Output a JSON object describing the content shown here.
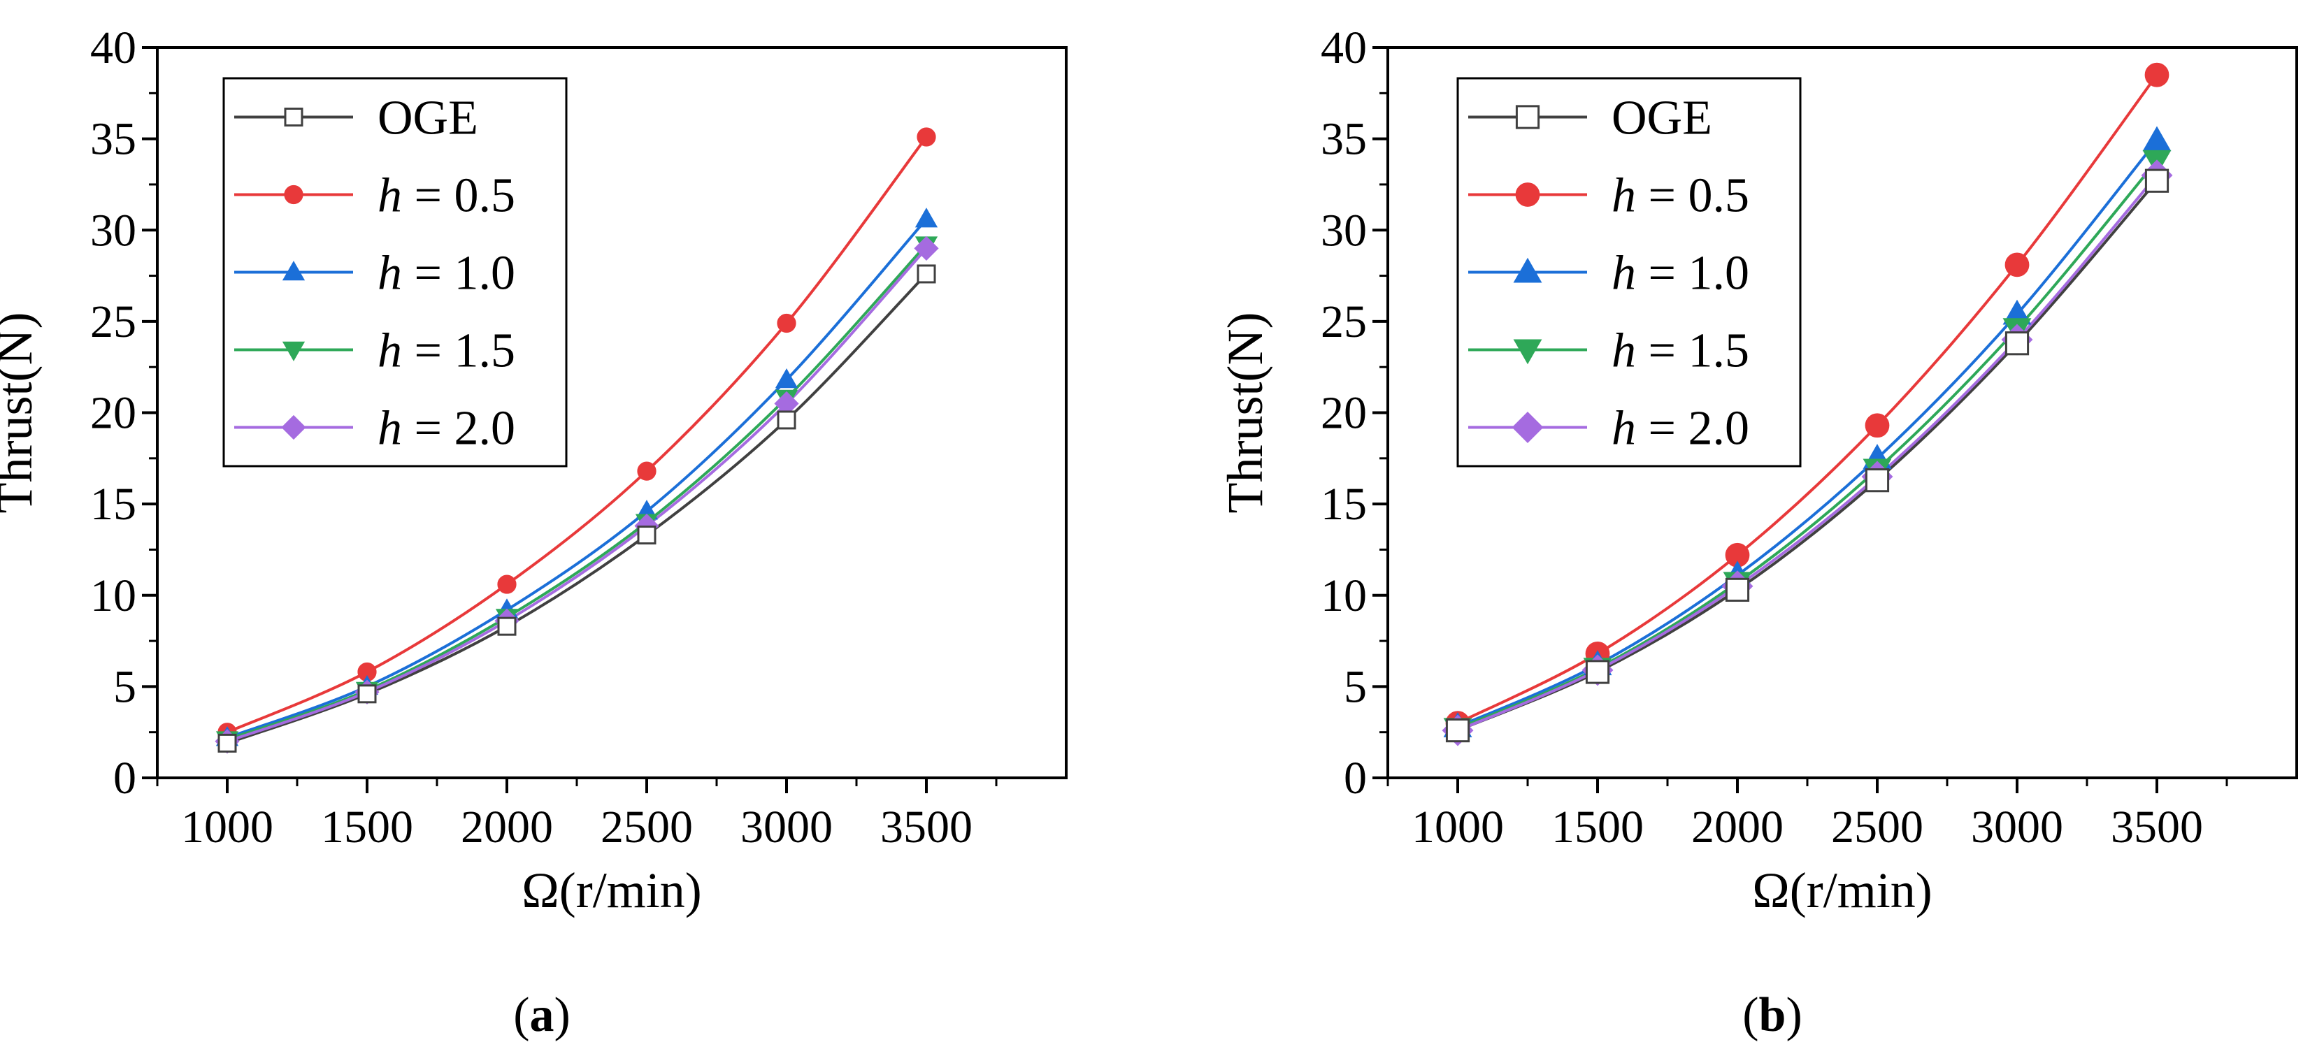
{
  "chart_data": [
    {
      "panel_label": "a",
      "type": "line",
      "xlabel": "Ω(r/min)",
      "ylabel": "Thrust(N)",
      "xlim": [
        750,
        4000
      ],
      "ylim": [
        0,
        40
      ],
      "xticks": [
        1000,
        1500,
        2000,
        2500,
        3000,
        3500
      ],
      "yticks": [
        0,
        5,
        10,
        15,
        20,
        25,
        30,
        35,
        40
      ],
      "legend_position": "top-left",
      "x": [
        1000,
        1500,
        2000,
        2500,
        3000,
        3500
      ],
      "series": [
        {
          "name": "OGE",
          "prefix": "",
          "value_text": "OGE",
          "color": "#404040",
          "marker": "square-open",
          "values": [
            1.9,
            4.6,
            8.3,
            13.3,
            19.6,
            27.6
          ]
        },
        {
          "name": "h = 0.5",
          "prefix": "h",
          "value_text": " = 0.5",
          "color": "#e8393a",
          "marker": "circle",
          "values": [
            2.5,
            5.8,
            10.6,
            16.8,
            24.9,
            35.1
          ]
        },
        {
          "name": "h = 1.0",
          "prefix": "h",
          "value_text": " = 1.0",
          "color": "#1b6fd8",
          "marker": "triangle-up",
          "values": [
            2.2,
            5.0,
            9.2,
            14.6,
            21.8,
            30.6
          ]
        },
        {
          "name": "h = 1.5",
          "prefix": "h",
          "value_text": " = 1.5",
          "color": "#2ea858",
          "marker": "triangle-down",
          "values": [
            2.1,
            4.8,
            8.8,
            14.0,
            20.8,
            29.2
          ]
        },
        {
          "name": "h = 2.0",
          "prefix": "h",
          "value_text": " = 2.0",
          "color": "#a56be0",
          "marker": "diamond",
          "values": [
            2.0,
            4.7,
            8.6,
            13.8,
            20.5,
            29.0
          ]
        }
      ]
    },
    {
      "panel_label": "b",
      "type": "line",
      "xlabel": "Ω(r/min)",
      "ylabel": "Thrust(N)",
      "xlim": [
        750,
        4000
      ],
      "ylim": [
        0,
        40
      ],
      "xticks": [
        1000,
        1500,
        2000,
        2500,
        3000,
        3500
      ],
      "yticks": [
        0,
        5,
        10,
        15,
        20,
        25,
        30,
        35,
        40
      ],
      "legend_position": "top-left",
      "x": [
        1000,
        1500,
        2000,
        2500,
        3000,
        3500
      ],
      "series": [
        {
          "name": "OGE",
          "prefix": "",
          "value_text": "OGE",
          "color": "#404040",
          "marker": "square-open",
          "values": [
            2.6,
            5.8,
            10.3,
            16.3,
            23.8,
            32.7
          ]
        },
        {
          "name": "h = 0.5",
          "prefix": "h",
          "value_text": " = 0.5",
          "color": "#e8393a",
          "marker": "circle",
          "values": [
            3.0,
            6.8,
            12.2,
            19.3,
            28.1,
            38.5
          ]
        },
        {
          "name": "h = 1.0",
          "prefix": "h",
          "value_text": " = 1.0",
          "color": "#1b6fd8",
          "marker": "triangle-up",
          "values": [
            2.8,
            6.2,
            11.1,
            17.5,
            25.4,
            34.9
          ]
        },
        {
          "name": "h = 1.5",
          "prefix": "h",
          "value_text": " = 1.5",
          "color": "#2ea858",
          "marker": "triangle-down",
          "values": [
            2.7,
            6.0,
            10.7,
            16.9,
            24.6,
            33.8
          ]
        },
        {
          "name": "h = 2.0",
          "prefix": "h",
          "value_text": " = 2.0",
          "color": "#a56be0",
          "marker": "diamond",
          "values": [
            2.6,
            5.9,
            10.5,
            16.5,
            24.0,
            33.0
          ]
        }
      ]
    }
  ]
}
